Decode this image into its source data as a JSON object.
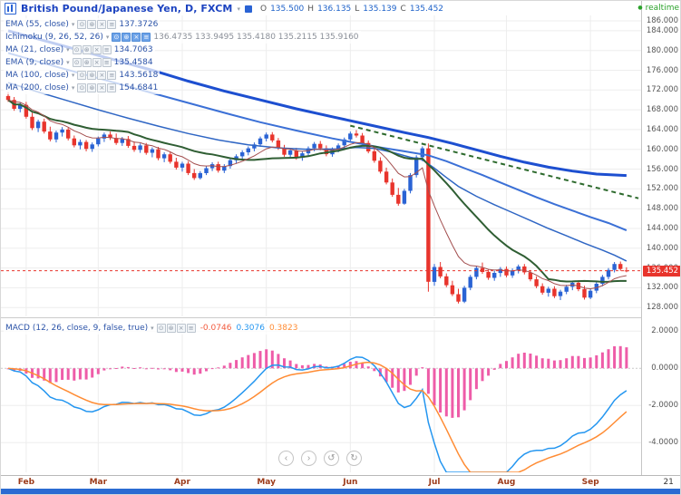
{
  "colors": {
    "title_blue": "#1c43c0",
    "value_blue": "#1d61c9",
    "realtime_green": "#2aa22a",
    "price_tag_bg": "#e8342c",
    "month_label": "#9c3a19",
    "minor_time_label": "#333333",
    "bottom_bar": "#2a6bd2",
    "macd_hist_value": "#f25b3e",
    "macd_line_value": "#2496f0",
    "macd_signal_value": "#ff8c34"
  },
  "icons": {
    "eye": "⊙",
    "settings": "⊛",
    "delete": "×",
    "more": "≡",
    "caret": "▾",
    "realtime_dot": "●"
  },
  "header": {
    "title": "British Pound/Japanese Yen, D, FXCM",
    "ohlc": {
      "o_key": "O",
      "o": "135.500",
      "h_key": "H",
      "h": "136.135",
      "l_key": "L",
      "l": "135.139",
      "c_key": "C",
      "c": "135.452"
    },
    "realtime": "realtime"
  },
  "legend": [
    {
      "name": "EMA (55, close)",
      "value": "137.3726"
    },
    {
      "name": "Ichimoku (9, 26, 52, 26)",
      "value": "136.4735 133.9495 135.4180 135.2115 135.9160"
    },
    {
      "name": "MA (21, close)",
      "value": "134.7063"
    },
    {
      "name": "EMA (9, close)",
      "value": "135.4584"
    },
    {
      "name": "MA (100, close)",
      "value": "143.5618"
    },
    {
      "name": "MA (200, close)",
      "value": "154.6841"
    }
  ],
  "macd_legend": {
    "name": "MACD (12, 26, close, 9, false, true)",
    "hist_value": "-0.0746",
    "macd_value": "0.3076",
    "signal_value": "0.3823"
  },
  "nav_buttons": {
    "left": "‹",
    "right": "›",
    "reset": "↺",
    "refresh": "↻"
  },
  "time_axis": {
    "months": [
      {
        "label": "Feb",
        "index": 3
      },
      {
        "label": "Mar",
        "index": 15
      },
      {
        "label": "Apr",
        "index": 29
      },
      {
        "label": "May",
        "index": 43
      },
      {
        "label": "Jun",
        "index": 57
      },
      {
        "label": "Jul",
        "index": 71
      },
      {
        "label": "Aug",
        "index": 83
      },
      {
        "label": "Sep",
        "index": 97
      },
      {
        "label": "21",
        "index": 110,
        "minor": true
      }
    ]
  },
  "price_axis": {
    "ticks": [
      186,
      184,
      180,
      176,
      172,
      168,
      164,
      160,
      156,
      152,
      148,
      144,
      140,
      136,
      132,
      128
    ],
    "current_label": "135.452"
  },
  "macd_axis": {
    "ticks": [
      2,
      0,
      -2,
      -4
    ]
  },
  "chart_data": [
    {
      "type": "candlestick",
      "title": "British Pound/Japanese Yen, D, FXCM",
      "interval": "D",
      "ylim": [
        126.2,
        187.1
      ],
      "up_color": "#2a63d4",
      "down_color": "#e8342c",
      "current_price": 135.452,
      "candles": [
        [
          170.8,
          171.6,
          169.6,
          170.0
        ],
        [
          170.0,
          170.6,
          167.8,
          168.2
        ],
        [
          168.2,
          169.5,
          167.5,
          169.0
        ],
        [
          169.0,
          169.6,
          166.2,
          166.6
        ],
        [
          166.6,
          167.4,
          163.9,
          164.3
        ],
        [
          164.3,
          166.0,
          163.5,
          165.6
        ],
        [
          165.6,
          166.2,
          163.2,
          163.6
        ],
        [
          163.6,
          164.6,
          161.6,
          162.0
        ],
        [
          162.0,
          163.8,
          161.4,
          163.4
        ],
        [
          163.4,
          164.5,
          162.6,
          164.0
        ],
        [
          164.0,
          164.4,
          161.8,
          162.2
        ],
        [
          162.2,
          162.8,
          160.4,
          160.8
        ],
        [
          160.8,
          162.0,
          160.0,
          161.5
        ],
        [
          161.5,
          161.9,
          159.6,
          160.1
        ],
        [
          160.1,
          161.4,
          159.5,
          161.0
        ],
        [
          161.0,
          162.6,
          160.6,
          162.2
        ],
        [
          162.2,
          163.4,
          161.5,
          163.0
        ],
        [
          163.0,
          163.6,
          161.9,
          162.3
        ],
        [
          162.3,
          163.2,
          160.9,
          161.3
        ],
        [
          161.3,
          162.5,
          160.7,
          162.1
        ],
        [
          162.1,
          162.7,
          160.3,
          160.7
        ],
        [
          160.7,
          161.6,
          159.5,
          159.9
        ],
        [
          159.9,
          161.2,
          159.3,
          160.8
        ],
        [
          160.8,
          161.3,
          158.9,
          159.3
        ],
        [
          159.3,
          160.4,
          158.4,
          160.0
        ],
        [
          160.0,
          160.5,
          157.8,
          158.2
        ],
        [
          158.2,
          159.4,
          157.4,
          159.0
        ],
        [
          159.0,
          159.5,
          157.1,
          157.5
        ],
        [
          157.5,
          158.3,
          155.9,
          156.3
        ],
        [
          156.3,
          157.5,
          155.5,
          157.1
        ],
        [
          157.1,
          157.6,
          154.8,
          155.2
        ],
        [
          155.2,
          156.0,
          153.8,
          154.2
        ],
        [
          154.2,
          155.6,
          153.9,
          155.2
        ],
        [
          155.2,
          156.6,
          154.8,
          156.2
        ],
        [
          156.2,
          157.4,
          155.6,
          157.0
        ],
        [
          157.0,
          157.5,
          155.3,
          155.7
        ],
        [
          155.7,
          157.0,
          155.2,
          156.6
        ],
        [
          156.6,
          158.2,
          156.1,
          157.8
        ],
        [
          157.8,
          159.0,
          157.2,
          158.6
        ],
        [
          158.6,
          159.8,
          158.0,
          159.4
        ],
        [
          159.4,
          160.6,
          158.8,
          160.2
        ],
        [
          160.2,
          161.4,
          159.6,
          161.0
        ],
        [
          161.0,
          162.6,
          160.5,
          162.2
        ],
        [
          162.2,
          163.4,
          161.6,
          163.0
        ],
        [
          163.0,
          163.5,
          161.4,
          161.8
        ],
        [
          161.8,
          162.3,
          159.9,
          160.3
        ],
        [
          160.3,
          160.9,
          158.5,
          158.9
        ],
        [
          158.9,
          160.2,
          158.3,
          159.8
        ],
        [
          159.8,
          160.3,
          157.9,
          158.3
        ],
        [
          158.3,
          159.6,
          157.7,
          159.2
        ],
        [
          159.2,
          160.6,
          158.7,
          160.2
        ],
        [
          160.2,
          161.5,
          159.6,
          161.1
        ],
        [
          161.1,
          161.7,
          159.8,
          160.2
        ],
        [
          160.2,
          160.8,
          158.6,
          159.0
        ],
        [
          159.0,
          160.4,
          158.5,
          160.0
        ],
        [
          160.0,
          161.2,
          159.4,
          160.8
        ],
        [
          160.8,
          162.4,
          160.3,
          162.0
        ],
        [
          162.0,
          163.6,
          161.4,
          163.2
        ],
        [
          163.2,
          163.9,
          162.4,
          162.8
        ],
        [
          162.8,
          163.3,
          160.9,
          161.3
        ],
        [
          161.3,
          161.8,
          159.2,
          159.6
        ],
        [
          159.6,
          160.1,
          157.3,
          157.7
        ],
        [
          157.7,
          158.4,
          155.1,
          155.5
        ],
        [
          155.5,
          156.3,
          152.9,
          153.3
        ],
        [
          153.3,
          154.1,
          150.4,
          150.8
        ],
        [
          150.8,
          152.2,
          148.6,
          149.0
        ],
        [
          149.0,
          152.0,
          148.8,
          151.6
        ],
        [
          151.6,
          155.2,
          151.1,
          154.8
        ],
        [
          154.8,
          158.8,
          154.3,
          158.4
        ],
        [
          158.4,
          160.6,
          157.6,
          160.2
        ],
        [
          160.2,
          161.2,
          131.2,
          133.2
        ],
        [
          133.2,
          136.8,
          132.4,
          136.2
        ],
        [
          136.2,
          137.2,
          133.9,
          134.3
        ],
        [
          134.3,
          134.9,
          132.1,
          132.5
        ],
        [
          132.5,
          133.4,
          130.3,
          130.7
        ],
        [
          130.7,
          131.8,
          128.8,
          129.2
        ],
        [
          129.2,
          132.4,
          128.9,
          132.0
        ],
        [
          132.0,
          134.6,
          131.5,
          134.2
        ],
        [
          134.2,
          136.4,
          133.7,
          136.0
        ],
        [
          136.0,
          137.1,
          134.8,
          135.2
        ],
        [
          135.2,
          135.8,
          133.6,
          134.0
        ],
        [
          134.0,
          135.4,
          133.4,
          135.0
        ],
        [
          135.0,
          136.2,
          134.2,
          135.8
        ],
        [
          135.8,
          136.3,
          134.1,
          134.5
        ],
        [
          134.5,
          135.9,
          134.0,
          135.5
        ],
        [
          135.5,
          136.7,
          134.9,
          136.3
        ],
        [
          136.3,
          136.8,
          134.7,
          135.1
        ],
        [
          135.1,
          135.6,
          133.3,
          133.7
        ],
        [
          133.7,
          134.3,
          131.9,
          132.3
        ],
        [
          132.3,
          132.9,
          130.6,
          131.0
        ],
        [
          131.0,
          132.2,
          130.2,
          131.8
        ],
        [
          131.8,
          132.3,
          129.9,
          130.3
        ],
        [
          130.3,
          131.6,
          129.5,
          131.2
        ],
        [
          131.2,
          132.6,
          130.7,
          132.2
        ],
        [
          132.2,
          133.4,
          131.5,
          133.0
        ],
        [
          133.0,
          133.5,
          131.3,
          131.7
        ],
        [
          131.7,
          132.4,
          129.6,
          130.0
        ],
        [
          130.0,
          131.8,
          129.7,
          131.4
        ],
        [
          131.4,
          133.2,
          130.9,
          132.8
        ],
        [
          132.8,
          134.6,
          132.3,
          134.2
        ],
        [
          134.2,
          136.0,
          133.7,
          135.6
        ],
        [
          135.6,
          137.2,
          135.1,
          136.8
        ],
        [
          136.8,
          137.3,
          135.4,
          135.8
        ],
        [
          135.5,
          136.135,
          135.139,
          135.452
        ]
      ],
      "overlays": [
        {
          "name": "MA 200",
          "color": "#1d4fd0",
          "width": 3,
          "points": [
            [
              0,
              184.0
            ],
            [
              6,
              182.0
            ],
            [
              12,
              180.0
            ],
            [
              18,
              178.0
            ],
            [
              24,
              176.0
            ],
            [
              30,
              173.8
            ],
            [
              36,
              171.8
            ],
            [
              42,
              170.0
            ],
            [
              48,
              168.2
            ],
            [
              54,
              166.6
            ],
            [
              60,
              165.0
            ],
            [
              66,
              163.4
            ],
            [
              70,
              162.4
            ],
            [
              74,
              161.2
            ],
            [
              78,
              159.9
            ],
            [
              82,
              158.6
            ],
            [
              86,
              157.4
            ],
            [
              90,
              156.4
            ],
            [
              94,
              155.6
            ],
            [
              98,
              155.0
            ],
            [
              103,
              154.7
            ]
          ]
        },
        {
          "name": "MA 100",
          "color": "#3b70d6",
          "width": 2,
          "points": [
            [
              0,
              179.5
            ],
            [
              6,
              177.4
            ],
            [
              12,
              175.4
            ],
            [
              18,
              173.4
            ],
            [
              24,
              171.4
            ],
            [
              30,
              169.4
            ],
            [
              36,
              167.4
            ],
            [
              42,
              165.5
            ],
            [
              48,
              163.8
            ],
            [
              54,
              162.2
            ],
            [
              58,
              161.3
            ],
            [
              62,
              160.4
            ],
            [
              66,
              159.6
            ],
            [
              70,
              158.8
            ],
            [
              73,
              157.6
            ],
            [
              76,
              156.2
            ],
            [
              79,
              154.8
            ],
            [
              82,
              153.3
            ],
            [
              85,
              151.8
            ],
            [
              88,
              150.3
            ],
            [
              91,
              148.9
            ],
            [
              94,
              147.6
            ],
            [
              97,
              146.3
            ],
            [
              100,
              145.1
            ],
            [
              103,
              143.6
            ]
          ]
        },
        {
          "name": "EMA 55",
          "color": "#2f66c4",
          "width": 1.5,
          "points": [
            [
              0,
              173.5
            ],
            [
              5,
              171.6
            ],
            [
              10,
              169.8
            ],
            [
              15,
              168.0
            ],
            [
              20,
              166.3
            ],
            [
              25,
              164.7
            ],
            [
              30,
              163.2
            ],
            [
              35,
              161.9
            ],
            [
              40,
              160.9
            ],
            [
              45,
              160.3
            ],
            [
              50,
              160.0
            ],
            [
              55,
              160.1
            ],
            [
              58,
              160.4
            ],
            [
              61,
              160.2
            ],
            [
              64,
              159.4
            ],
            [
              67,
              158.4
            ],
            [
              69,
              157.9
            ],
            [
              71,
              156.2
            ],
            [
              73,
              154.3
            ],
            [
              75,
              152.5
            ],
            [
              78,
              150.5
            ],
            [
              81,
              148.8
            ],
            [
              84,
              147.2
            ],
            [
              87,
              145.6
            ],
            [
              90,
              144.0
            ],
            [
              93,
              142.5
            ],
            [
              96,
              141.0
            ],
            [
              99,
              139.6
            ],
            [
              101,
              138.6
            ],
            [
              103,
              137.4
            ]
          ]
        },
        {
          "name": "trendline",
          "color": "#2d6a2d",
          "width": 2,
          "dash": "5,4",
          "points": [
            [
              57,
              164.8
            ],
            [
              105,
              150.1
            ]
          ]
        }
      ],
      "computed_overlays": [
        {
          "name": "MA 21",
          "method": "sma",
          "period": 21,
          "color": "#2f5e33",
          "width": 2
        },
        {
          "name": "EMA 9",
          "method": "ema",
          "period": 9,
          "color": "#a34f4f",
          "width": 1
        }
      ]
    },
    {
      "type": "macd",
      "params": {
        "fast": 12,
        "slow": 26,
        "signal": 9
      },
      "ylim": [
        -5.6,
        2.6
      ],
      "histogram_color": "#ee5ca8",
      "macd_color": "#2496f0",
      "signal_color": "#ff8c34"
    }
  ]
}
